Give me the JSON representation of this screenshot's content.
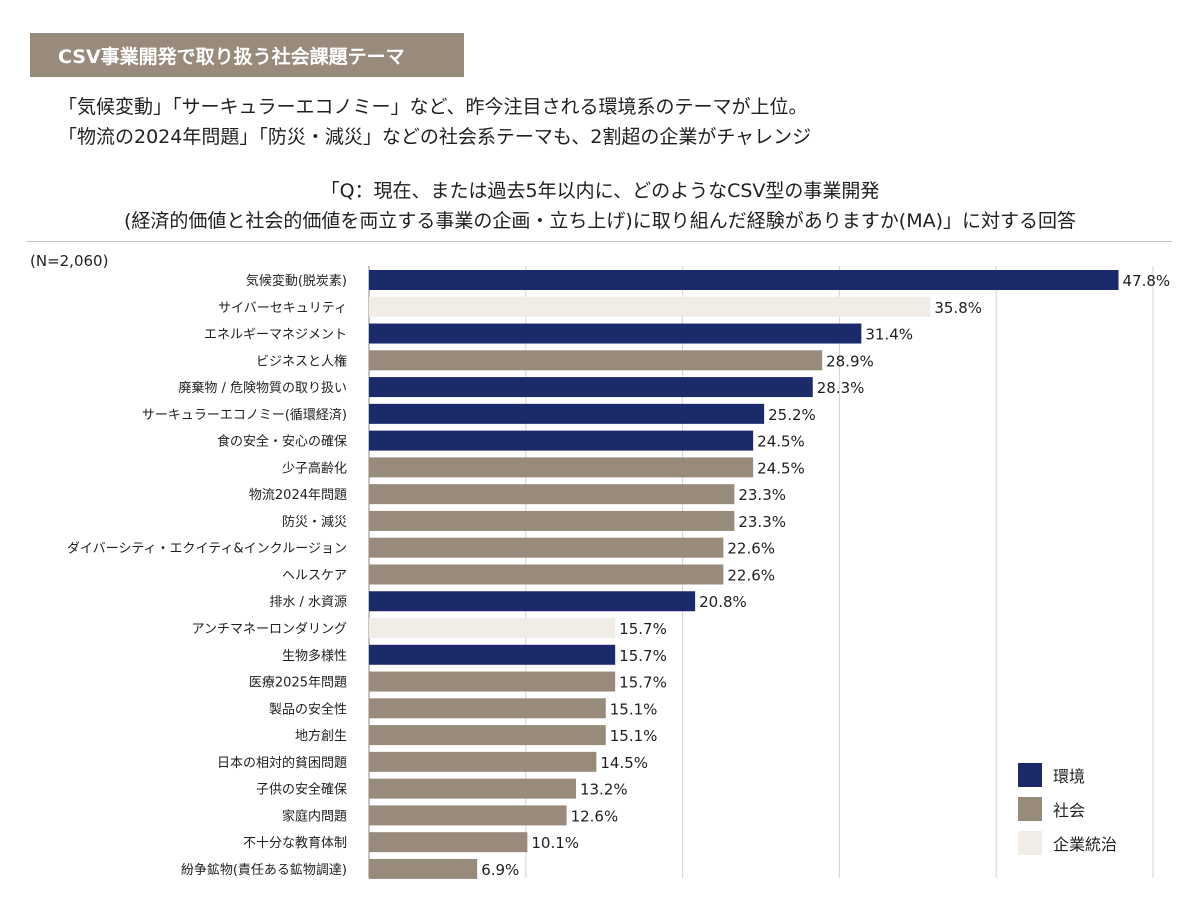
{
  "header": {
    "title": "CSV事業開発で取り扱う社会課題テーマ"
  },
  "subtitle": {
    "line1": "「気候変動」「サーキュラーエコノミー」など、昨今注目される環境系のテーマが上位。",
    "line2": "「物流の2024年問題」「防災・減災」などの社会系テーマも、2割超の企業がチャレンジ"
  },
  "question": {
    "line1": "「Q：現在、または過去5年以内に、どのようなCSV型の事業開発",
    "line2": "(経済的価値と社会的価値を両立する事業の企画・立ち上げ)に取り組んだ経験がありますか(MA)」に対する回答"
  },
  "sample_size": "(N=2,060)",
  "colors": {
    "environment": "#1b2a6b",
    "social": "#998b7b",
    "governance": "#f1ece6",
    "header_bg": "#998b7b"
  },
  "legend": {
    "items": [
      {
        "label": "環境",
        "color_key": "environment"
      },
      {
        "label": "社会",
        "color_key": "social"
      },
      {
        "label": "企業統治",
        "color_key": "governance"
      }
    ]
  },
  "chart_data": {
    "type": "bar",
    "orientation": "horizontal",
    "value_suffix": "%",
    "xlim": [
      0,
      50
    ],
    "grid": true,
    "legend_position": "bottom-right",
    "bars": [
      {
        "category": "気候変動(脱炭素)",
        "value": 47.8,
        "group": "environment"
      },
      {
        "category": "サイバーセキュリティ",
        "value": 35.8,
        "group": "governance"
      },
      {
        "category": "エネルギーマネジメント",
        "value": 31.4,
        "group": "environment"
      },
      {
        "category": "ビジネスと人権",
        "value": 28.9,
        "group": "social"
      },
      {
        "category": "廃棄物 / 危険物質の取り扱い",
        "value": 28.3,
        "group": "environment"
      },
      {
        "category": "サーキュラーエコノミー(循環経済)",
        "value": 25.2,
        "group": "environment"
      },
      {
        "category": "食の安全・安心の確保",
        "value": 24.5,
        "group": "environment"
      },
      {
        "category": "少子高齢化",
        "value": 24.5,
        "group": "social"
      },
      {
        "category": "物流2024年問題",
        "value": 23.3,
        "group": "social"
      },
      {
        "category": "防災・減災",
        "value": 23.3,
        "group": "social"
      },
      {
        "category": "ダイバーシティ・エクイティ&インクルージョン",
        "value": 22.6,
        "group": "social"
      },
      {
        "category": "ヘルスケア",
        "value": 22.6,
        "group": "social"
      },
      {
        "category": "排水 / 水資源",
        "value": 20.8,
        "group": "environment"
      },
      {
        "category": "アンチマネーロンダリング",
        "value": 15.7,
        "group": "governance"
      },
      {
        "category": "生物多様性",
        "value": 15.7,
        "group": "environment"
      },
      {
        "category": "医療2025年問題",
        "value": 15.7,
        "group": "social"
      },
      {
        "category": "製品の安全性",
        "value": 15.1,
        "group": "social"
      },
      {
        "category": "地方創生",
        "value": 15.1,
        "group": "social"
      },
      {
        "category": "日本の相対的貧困問題",
        "value": 14.5,
        "group": "social"
      },
      {
        "category": "子供の安全確保",
        "value": 13.2,
        "group": "social"
      },
      {
        "category": "家庭内問題",
        "value": 12.6,
        "group": "social"
      },
      {
        "category": "不十分な教育体制",
        "value": 10.1,
        "group": "social"
      },
      {
        "category": "紛争鉱物(責任ある鉱物調達)",
        "value": 6.9,
        "group": "social"
      }
    ]
  }
}
